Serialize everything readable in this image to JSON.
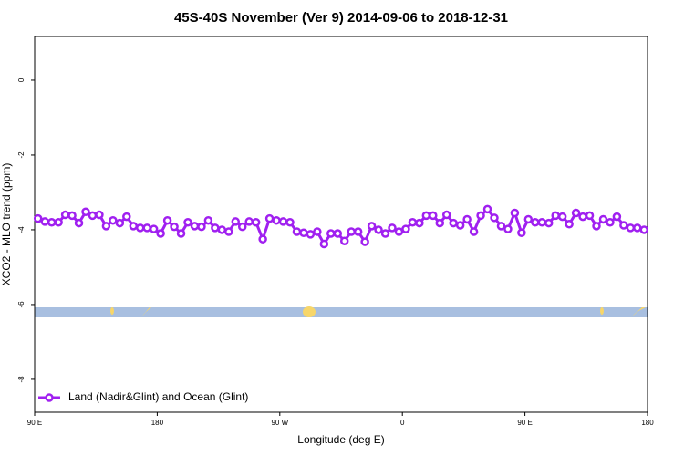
{
  "chart_data": {
    "type": "line",
    "title": "45S-40S November (Ver 9)   2014-09-06 to 2018-12-31",
    "xlabel": "Longitude (deg E)",
    "ylabel": "XCO2 - MLO trend (ppm)",
    "xlim": [
      90,
      540
    ],
    "ylim": [
      -8.88,
      1.17
    ],
    "xticks": [
      {
        "value": 90,
        "label": "90 E"
      },
      180,
      {
        "value": 270,
        "label": "90 W"
      },
      {
        "value": 360,
        "label": "0"
      },
      {
        "value": 450,
        "label": "90 E"
      },
      {
        "value": 540,
        "label": "180"
      }
    ],
    "yticks": [
      0,
      -2,
      -4,
      -6,
      -8
    ],
    "legend": "bottom-left",
    "series": [
      {
        "name": "Land (Nadir&Glint) and Ocean (Glint)",
        "color": "#a020f0",
        "x": [
          92.5,
          97.5,
          102.5,
          107.5,
          112.5,
          117.5,
          122.5,
          127.5,
          132.5,
          137.5,
          142.5,
          147.5,
          152.5,
          157.5,
          162.5,
          167.5,
          172.5,
          177.5,
          182.5,
          187.5,
          192.5,
          197.5,
          202.5,
          207.5,
          212.5,
          217.5,
          222.5,
          227.5,
          232.5,
          237.5,
          242.5,
          247.5,
          252.5,
          257.5,
          262.5,
          267.5,
          272.5,
          277.5,
          282.5,
          287.5,
          292.5,
          297.5,
          302.5,
          307.5,
          312.5,
          317.5,
          322.5,
          327.5,
          332.5,
          337.5,
          342.5,
          347.5,
          352.5,
          357.5,
          362.5,
          367.5,
          372.5,
          377.5,
          382.5,
          387.5,
          392.5,
          397.5,
          402.5,
          407.5,
          412.5,
          417.5,
          422.5,
          427.5,
          432.5,
          437.5,
          442.5,
          447.5,
          452.5,
          457.5,
          462.5,
          467.5,
          472.5,
          477.5,
          482.5,
          487.5,
          492.5,
          497.5,
          502.5,
          507.5,
          512.5,
          517.5,
          522.5,
          527.5,
          532.5,
          537.5
        ],
        "values": [
          -3.7,
          -3.78,
          -3.8,
          -3.8,
          -3.6,
          -3.62,
          -3.82,
          -3.52,
          -3.62,
          -3.6,
          -3.9,
          -3.75,
          -3.82,
          -3.65,
          -3.9,
          -3.95,
          -3.95,
          -3.98,
          -4.1,
          -3.75,
          -3.92,
          -4.1,
          -3.8,
          -3.9,
          -3.92,
          -3.75,
          -3.95,
          -4.0,
          -4.05,
          -3.78,
          -3.92,
          -3.78,
          -3.8,
          -4.25,
          -3.7,
          -3.75,
          -3.78,
          -3.8,
          -4.05,
          -4.08,
          -4.12,
          -4.05,
          -4.38,
          -4.1,
          -4.1,
          -4.3,
          -4.05,
          -4.05,
          -4.32,
          -3.9,
          -4.0,
          -4.1,
          -3.95,
          -4.05,
          -3.98,
          -3.8,
          -3.82,
          -3.62,
          -3.62,
          -3.82,
          -3.6,
          -3.82,
          -3.88,
          -3.72,
          -4.05,
          -3.62,
          -3.45,
          -3.68,
          -3.9,
          -3.98,
          -3.55,
          -4.08,
          -3.72,
          -3.8,
          -3.8,
          -3.82,
          -3.62,
          -3.65,
          -3.85,
          -3.55,
          -3.65,
          -3.62,
          -3.9,
          -3.72,
          -3.8,
          -3.65,
          -3.88,
          -3.95,
          -3.95,
          -4.0
        ]
      }
    ]
  }
}
